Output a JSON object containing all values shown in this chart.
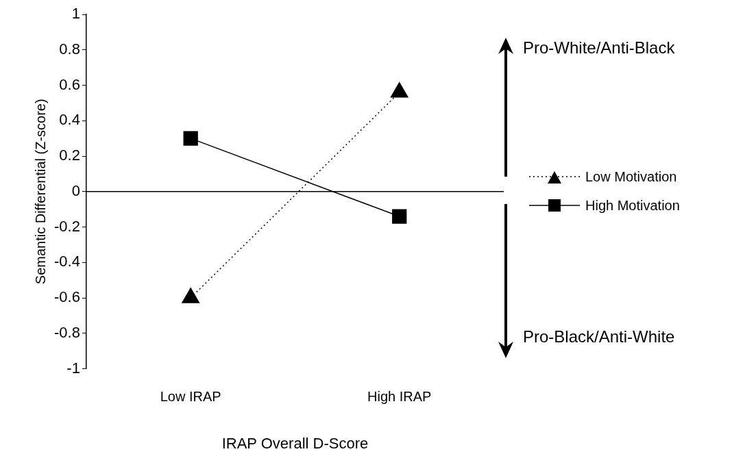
{
  "chart_data": {
    "type": "line",
    "xlabel": "IRAP Overall D-Score",
    "ylabel": "Semantic Differential (Z-score)",
    "categories": [
      "Low IRAP",
      "High IRAP"
    ],
    "series": [
      {
        "name": "Low Motivation",
        "color": "#000000",
        "values": [
          -0.6,
          0.56
        ],
        "marker": "triangle",
        "line_style": "dotted"
      },
      {
        "name": "High Motivation",
        "color": "#000000",
        "values": [
          0.3,
          -0.14
        ],
        "marker": "square",
        "line_style": "solid"
      }
    ],
    "ylim": [
      -1,
      1
    ],
    "yticks": [
      -1,
      -0.8,
      -0.6,
      -0.4,
      -0.2,
      0,
      0.2,
      0.4,
      0.6,
      0.8,
      1
    ],
    "ref_lines": [
      {
        "axis": "y",
        "value": 0
      }
    ],
    "annotations": [
      "Pro-White/Anti-Black",
      "Pro-Black/Anti-White"
    ],
    "grid": false,
    "legend": "right"
  }
}
